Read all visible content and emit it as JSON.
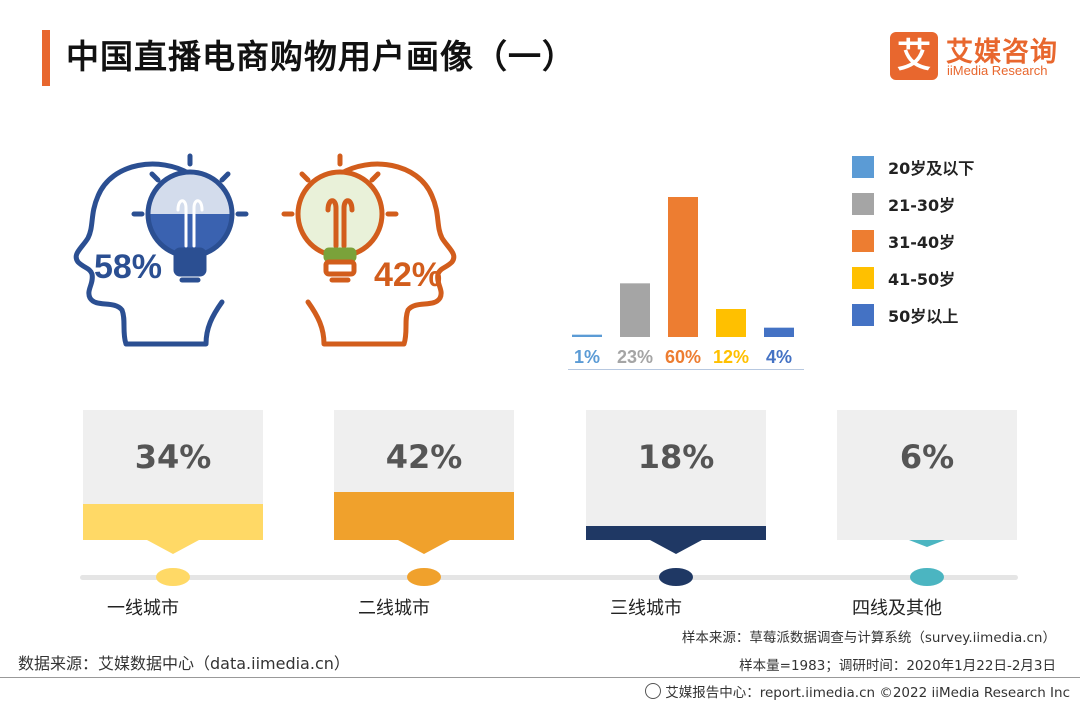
{
  "title": "中国直播电商购物用户画像（一）",
  "logo": {
    "mark": "艾",
    "cn": "艾媒咨询",
    "en": "iiMedia Research"
  },
  "icons": {
    "male_head": "male-head-bulb-icon",
    "female_head": "female-head-bulb-icon"
  },
  "chart_data": [
    {
      "type": "pictogram",
      "series": [
        {
          "name": "",
          "value": 58,
          "label": "58%",
          "color": "#2b4f92",
          "icon": "male-head-bulb-icon"
        },
        {
          "name": "",
          "value": 42,
          "label": "42%",
          "color": "#d25d1c",
          "icon": "female-head-bulb-icon"
        }
      ]
    },
    {
      "type": "bar",
      "categories": [
        "20岁及以下",
        "21-30岁",
        "31-40岁",
        "41-50岁",
        "50岁以上"
      ],
      "values": [
        1,
        23,
        60,
        12,
        4
      ],
      "labels": [
        "1%",
        "23%",
        "60%",
        "12%",
        "4%"
      ],
      "colors": [
        "#5b9bd5",
        "#a5a5a5",
        "#ed7d31",
        "#ffc000",
        "#4472c4"
      ],
      "legend": "right",
      "ylim": [
        0,
        60
      ]
    },
    {
      "type": "bar",
      "categories": [
        "一线城市",
        "二线城市",
        "三线城市",
        "四线及其他"
      ],
      "values": [
        34,
        42,
        18,
        6
      ],
      "labels": [
        "34%",
        "42%",
        "18%",
        "6%"
      ],
      "colors": [
        "#ffd966",
        "#f0a12c",
        "#1f3864",
        "#4bb5c1"
      ]
    }
  ],
  "source": "数据来源：艾媒数据中心（data.iimedia.cn）",
  "sample_source": "样本来源：草莓派数据调查与计算系统（survey.iimedia.cn）",
  "sample_size": "样本量=1983；调研时间：2020年1月22日-2月3日",
  "footer": "艾媒报告中心：report.iimedia.cn   ©2022  iiMedia Research  Inc"
}
